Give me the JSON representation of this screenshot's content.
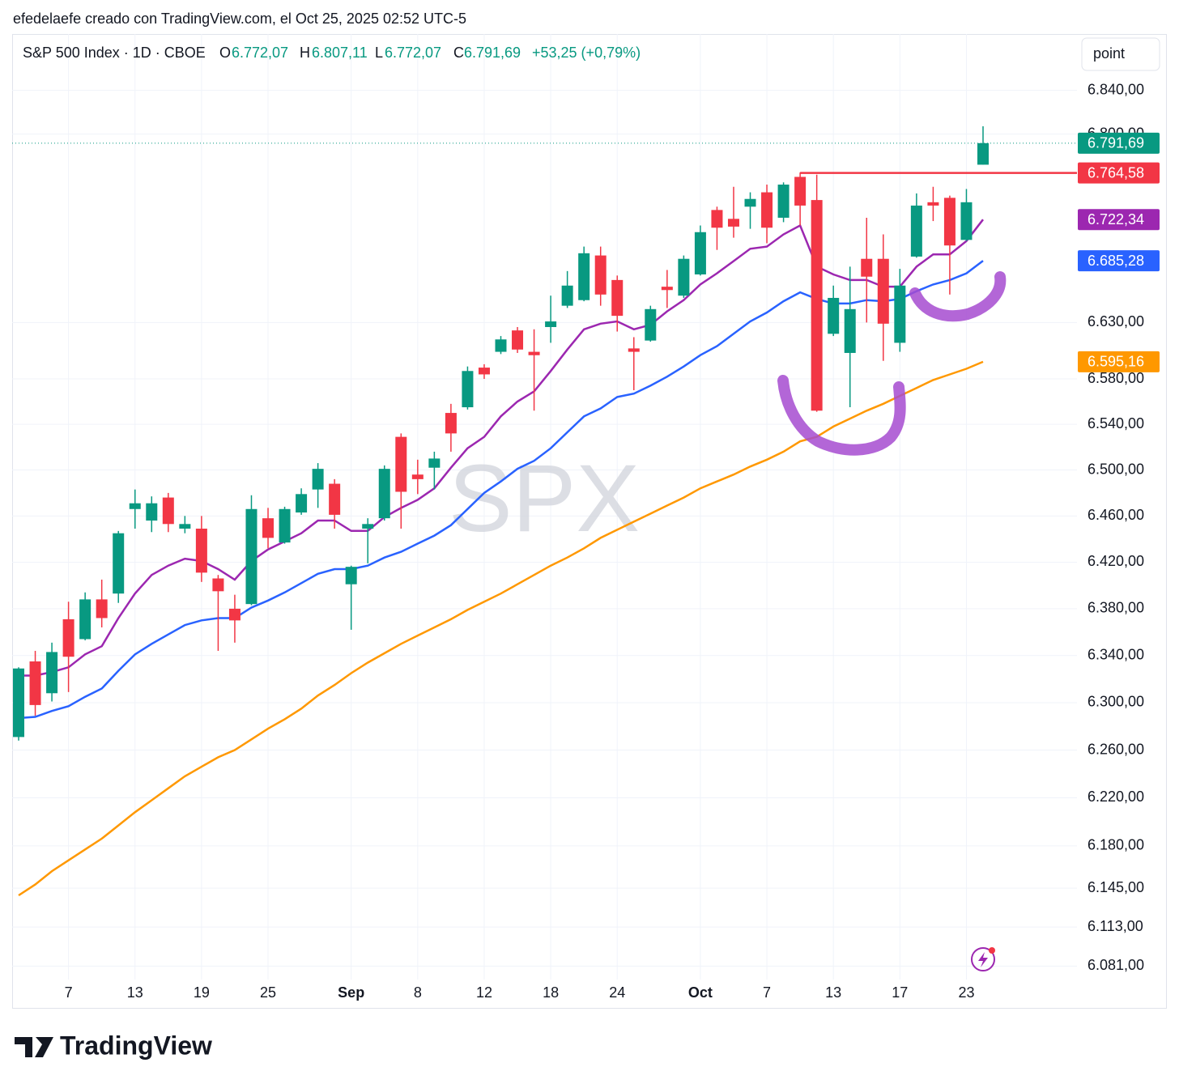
{
  "attribution": "efedelaefe creado con TradingView.com, el Oct 25, 2025 02:52 UTC-5",
  "footer_brand": "TradingView",
  "chart_data": {
    "type": "candlestick",
    "title": "S&P 500 Index · 1D · CBOE",
    "ohlc_legend": [
      {
        "key": "O",
        "value": "6.772,07"
      },
      {
        "key": "H",
        "value": "6.807,11"
      },
      {
        "key": "L",
        "value": "6.772,07"
      },
      {
        "key": "C",
        "value": "6.791,69"
      }
    ],
    "change": "+53,25 (+0,79%)",
    "unit_button": "point",
    "watermark": "SPX",
    "up_color": "#089981",
    "down_color": "#f23645",
    "categories": [
      null,
      null,
      null,
      "7",
      null,
      null,
      null,
      "13",
      null,
      null,
      null,
      "19",
      null,
      null,
      null,
      "25",
      null,
      null,
      null,
      null,
      "Sep",
      null,
      null,
      null,
      "8",
      null,
      null,
      null,
      "12",
      null,
      null,
      null,
      "18",
      null,
      null,
      null,
      "24",
      null,
      null,
      null,
      null,
      "Oct",
      null,
      null,
      null,
      "7",
      null,
      null,
      null,
      "13",
      null,
      null,
      null,
      "17",
      null,
      null,
      null,
      "23",
      null
    ],
    "open": [
      6271,
      6335,
      6308,
      6371,
      6354,
      6388,
      6393,
      6466,
      6456,
      6476,
      6449,
      6449,
      6406,
      6380,
      6384,
      6458,
      6437,
      6463,
      6483,
      6488,
      6401,
      6449,
      6458,
      6529,
      6496,
      6502,
      6550,
      6555,
      6590,
      6604,
      6623,
      6604,
      6626,
      6645,
      6650,
      6690,
      6668,
      6607,
      6614,
      6662,
      6654,
      6673,
      6731,
      6723,
      6734,
      6747,
      6724,
      6761,
      6740,
      6620,
      6603,
      6687,
      6687,
      6612,
      6689,
      6738,
      6742,
      6704,
      6772.07
    ],
    "high": [
      6330,
      6344,
      6351,
      6386,
      6394,
      6405,
      6447,
      6483,
      6477,
      6480,
      6460,
      6460,
      6409,
      6392,
      6478,
      6467,
      6468,
      6484,
      6506,
      6492,
      6417,
      6458,
      6504,
      6532,
      6509,
      6516,
      6558,
      6591,
      6593,
      6618,
      6626,
      6624,
      6654,
      6676,
      6698,
      6698,
      6672,
      6617,
      6645,
      6677,
      6690,
      6717,
      6734,
      6752,
      6747,
      6754,
      6756,
      6765,
      6763,
      6663,
      6680,
      6724,
      6709,
      6678,
      6746,
      6752,
      6744,
      6750,
      6807.11
    ],
    "low": [
      6268,
      6289,
      6301,
      6309,
      6353,
      6364,
      6385,
      6449,
      6446,
      6446,
      6445,
      6403,
      6344,
      6351,
      6383,
      6432,
      6436,
      6461,
      6467,
      6449,
      6362,
      6419,
      6456,
      6449,
      6479,
      6483,
      6516,
      6553,
      6580,
      6602,
      6603,
      6552,
      6612,
      6643,
      6649,
      6645,
      6622,
      6570,
      6613,
      6643,
      6652,
      6672,
      6695,
      6706,
      6714,
      6701,
      6720,
      6717,
      6551,
      6618,
      6555,
      6630,
      6596,
      6604,
      6688,
      6721,
      6655,
      6703,
      6772.07
    ],
    "close": [
      6329,
      6298,
      6343,
      6339,
      6388,
      6372,
      6445,
      6471,
      6471,
      6453,
      6453,
      6411,
      6395,
      6370,
      6466,
      6441,
      6466,
      6479,
      6501,
      6461,
      6416,
      6453,
      6501,
      6481,
      6492,
      6510,
      6532,
      6587,
      6584,
      6615,
      6606,
      6601,
      6631,
      6663,
      6692,
      6655,
      6636,
      6604,
      6642,
      6659,
      6687,
      6711,
      6715,
      6716,
      6741,
      6715,
      6754,
      6735,
      6552,
      6652,
      6642,
      6671,
      6629,
      6663,
      6735,
      6735,
      6699,
      6738,
      6791.69
    ],
    "lines": [
      {
        "color": "#9c27b0",
        "values": [
          6323,
          6323,
          6326,
          6330,
          6341,
          6348,
          6372,
          6393,
          6409,
          6417,
          6423,
          6421,
          6414,
          6405,
          6421,
          6431,
          6438,
          6445,
          6456,
          6456,
          6447,
          6447,
          6459,
          6467,
          6474,
          6484,
          6502,
          6519,
          6529,
          6547,
          6560,
          6569,
          6587,
          6606,
          6624,
          6629,
          6631,
          6624,
          6628,
          6640,
          6650,
          6664,
          6674,
          6685,
          6696,
          6698,
          6709,
          6717,
          6680,
          6673,
          6668,
          6668,
          6662,
          6662,
          6680,
          6691,
          6691,
          6703,
          6722.34
        ]
      },
      {
        "color": "#2962ff",
        "values": [
          6287,
          6288,
          6293,
          6297,
          6305,
          6312,
          6327,
          6341,
          6350,
          6358,
          6366,
          6370,
          6372,
          6372,
          6381,
          6387,
          6394,
          6402,
          6410,
          6414,
          6414,
          6417,
          6424,
          6429,
          6436,
          6443,
          6452,
          6466,
          6480,
          6490,
          6501,
          6508,
          6519,
          6533,
          6547,
          6554,
          6564,
          6567,
          6574,
          6582,
          6591,
          6601,
          6609,
          6620,
          6631,
          6639,
          6649,
          6657,
          6651,
          6647,
          6647,
          6650,
          6649,
          6651,
          6658,
          6664,
          6668,
          6674,
          6685.28
        ]
      },
      {
        "color": "#ff9800",
        "values": [
          6139,
          6148,
          6159,
          6168,
          6177,
          6186,
          6197,
          6208,
          6218,
          6228,
          6238,
          6246,
          6254,
          6260,
          6269,
          6278,
          6286,
          6295,
          6306,
          6315,
          6325,
          6334,
          6342,
          6350,
          6357,
          6364,
          6371,
          6379,
          6386,
          6393,
          6401,
          6409,
          6417,
          6424,
          6432,
          6441,
          6448,
          6455,
          6462,
          6469,
          6476,
          6484,
          6490,
          6496,
          6503,
          6509,
          6516,
          6525,
          6529,
          6538,
          6545,
          6552,
          6558,
          6565,
          6572,
          6579,
          6584,
          6589,
          6595.16
        ]
      }
    ],
    "price_labels": [
      {
        "value": 6791.69,
        "label": "6.791,69",
        "color": "#089981"
      },
      {
        "value": 6764.58,
        "label": "6.764,58",
        "color": "#f23645"
      },
      {
        "value": 6722.34,
        "label": "6.722,34",
        "color": "#9c27b0"
      },
      {
        "value": 6685.28,
        "label": "6.685,28",
        "color": "#2962ff"
      },
      {
        "value": 6595.16,
        "label": "6.595,16",
        "color": "#ff9800"
      }
    ],
    "ylim": [
      6070,
      6892
    ],
    "log_scale": true,
    "grid": true,
    "yticks": [
      {
        "value": 6840,
        "label": "6.840,00"
      },
      {
        "value": 6800,
        "label": "6.800,00"
      },
      {
        "value": 6630,
        "label": "6.630,00"
      },
      {
        "value": 6580,
        "label": "6.580,00"
      },
      {
        "value": 6540,
        "label": "6.540,00"
      },
      {
        "value": 6500,
        "label": "6.500,00"
      },
      {
        "value": 6460,
        "label": "6.460,00"
      },
      {
        "value": 6420,
        "label": "6.420,00"
      },
      {
        "value": 6380,
        "label": "6.380,00"
      },
      {
        "value": 6340,
        "label": "6.340,00"
      },
      {
        "value": 6300,
        "label": "6.300,00"
      },
      {
        "value": 6260,
        "label": "6.260,00"
      },
      {
        "value": 6220,
        "label": "6.220,00"
      },
      {
        "value": 6180,
        "label": "6.180,00"
      },
      {
        "value": 6145,
        "label": "6.145,00"
      },
      {
        "value": 6113,
        "label": "6.113,00"
      },
      {
        "value": 6081,
        "label": "6.081,00"
      }
    ]
  }
}
